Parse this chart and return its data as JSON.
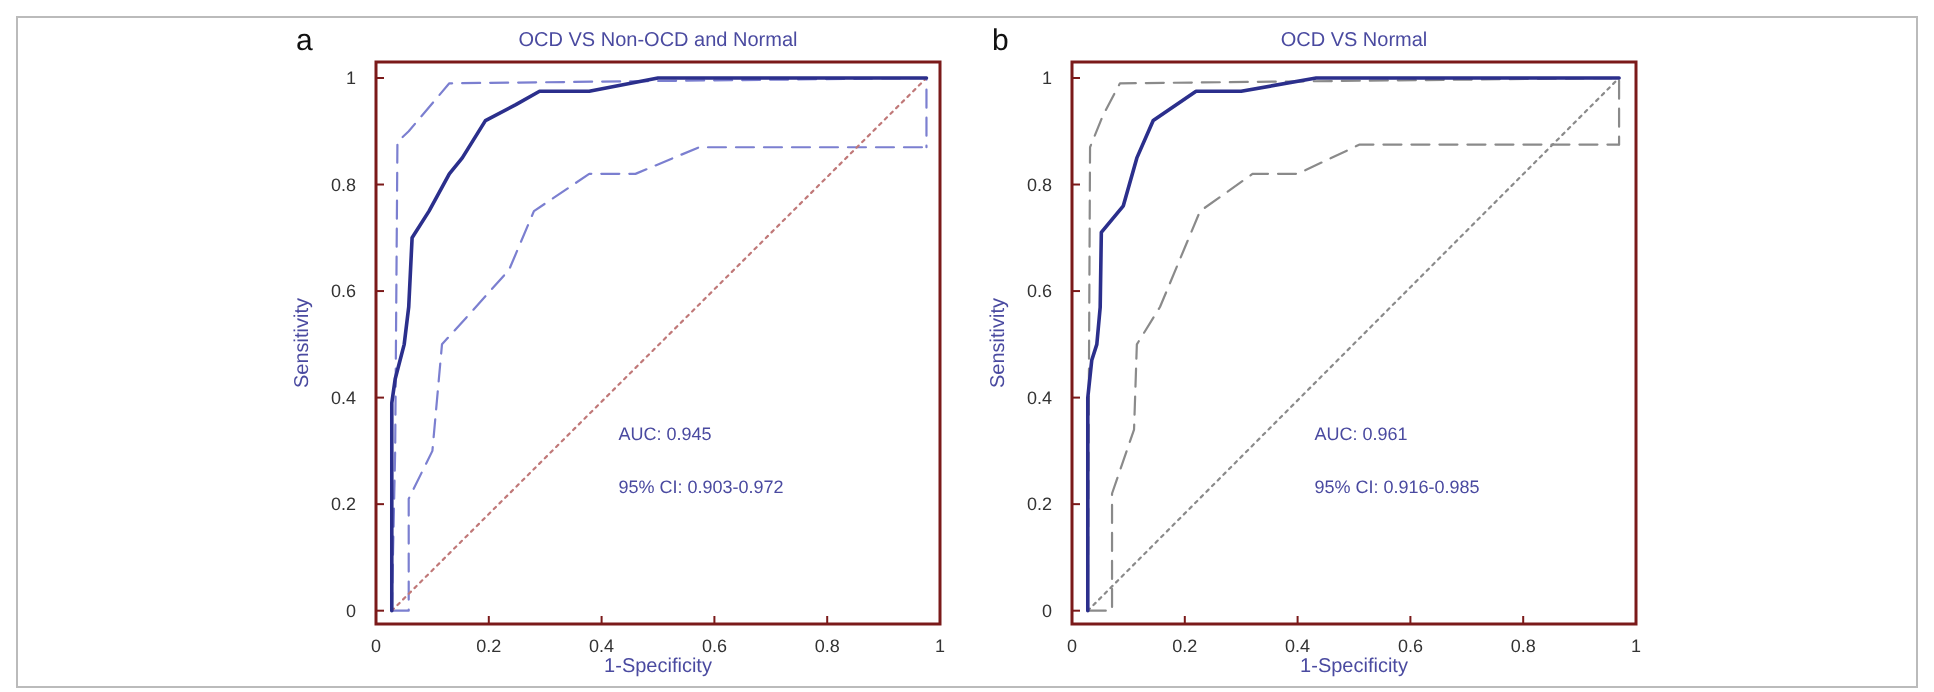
{
  "chart_data": [
    {
      "type": "line",
      "title": "OCD VS Non-OCD and Normal",
      "xlabel": "1-Specificity",
      "ylabel": "Sensitivity",
      "annotations": [
        "a",
        "AUC: 0.945",
        "95% CI: 0.903-0.972"
      ],
      "xlim": [
        0,
        1
      ],
      "ylim": [
        -0.025,
        1.03
      ],
      "xticks": [
        0,
        0.2,
        0.4,
        0.6,
        0.8,
        1
      ],
      "yticks": [
        0,
        0.2,
        0.4,
        0.6,
        0.8,
        1
      ],
      "series": [
        {
          "color": "#7b7fd0",
          "line_style": "dashed",
          "x": [
            0.028,
            0.028,
            0.058,
            0.058,
            0.1,
            0.117,
            0.16,
            0.236,
            0.28,
            0.378,
            0.46,
            0.573,
            0.976
          ],
          "values": [
            0,
            0,
            0,
            0.21,
            0.3,
            0.5,
            0.55,
            0.64,
            0.75,
            0.82,
            0.82,
            0.87,
            0.87
          ]
        },
        {
          "color": "#7b7fd0",
          "line_style": "dashed",
          "x": [
            0.028,
            0.034,
            0.038,
            0.058,
            0.13,
            0.976,
            0.976
          ],
          "values": [
            0,
            0.3,
            0.88,
            0.9,
            0.99,
            1.0,
            0.87
          ]
        },
        {
          "color": "#c07878",
          "line_style": "dotted",
          "x": [
            0.028,
            0.976
          ],
          "values": [
            0.0,
            1.0
          ]
        },
        {
          "color": "#2b2f8c",
          "line_style": "solid",
          "x": [
            0.028,
            0.028,
            0.034,
            0.05,
            0.058,
            0.064,
            0.094,
            0.13,
            0.153,
            0.194,
            0.248,
            0.29,
            0.378,
            0.5,
            0.976
          ],
          "values": [
            0,
            0.39,
            0.435,
            0.5,
            0.57,
            0.7,
            0.75,
            0.82,
            0.85,
            0.92,
            0.95,
            0.975,
            0.975,
            1.0,
            1.0
          ]
        }
      ]
    },
    {
      "type": "line",
      "title": "OCD VS Normal",
      "xlabel": "1-Specificity",
      "ylabel": "Sensitivity",
      "annotations": [
        "b",
        "AUC: 0.961",
        "95% CI: 0.916-0.985"
      ],
      "xlim": [
        0,
        1
      ],
      "ylim": [
        -0.025,
        1.03
      ],
      "xticks": [
        0,
        0.2,
        0.4,
        0.6,
        0.8,
        1
      ],
      "yticks": [
        0,
        0.2,
        0.4,
        0.6,
        0.8,
        1
      ],
      "series": [
        {
          "color": "#8a8a8a",
          "line_style": "dashed",
          "x": [
            0.028,
            0.071,
            0.071,
            0.11,
            0.115,
            0.156,
            0.227,
            0.32,
            0.4,
            0.51,
            0.97
          ],
          "values": [
            0,
            0,
            0.22,
            0.34,
            0.5,
            0.57,
            0.75,
            0.82,
            0.82,
            0.875,
            0.875
          ]
        },
        {
          "color": "#8a8a8a",
          "line_style": "dashed",
          "x": [
            0.028,
            0.032,
            0.055,
            0.085,
            0.97,
            0.97
          ],
          "values": [
            0,
            0.87,
            0.93,
            0.99,
            1.0,
            0.875
          ]
        },
        {
          "color": "#8a8a8a",
          "line_style": "dotted",
          "x": [
            0.028,
            0.97
          ],
          "values": [
            0.0,
            1.0
          ]
        },
        {
          "color": "#2b2f8c",
          "line_style": "solid",
          "x": [
            0.028,
            0.028,
            0.035,
            0.044,
            0.05,
            0.052,
            0.091,
            0.115,
            0.144,
            0.22,
            0.3,
            0.433,
            0.97
          ],
          "values": [
            0,
            0.4,
            0.47,
            0.5,
            0.57,
            0.71,
            0.76,
            0.85,
            0.92,
            0.975,
            0.975,
            1.0,
            1.0
          ]
        }
      ]
    }
  ]
}
